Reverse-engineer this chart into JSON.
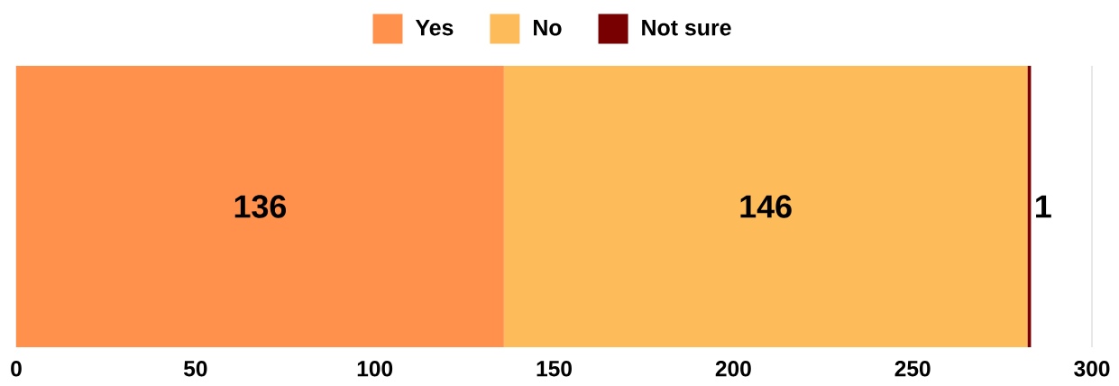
{
  "chart_data": {
    "type": "bar",
    "orientation": "horizontal",
    "stacked": true,
    "categories": [
      null
    ],
    "series": [
      {
        "name": "Yes",
        "color": "#ff914d",
        "values": [
          136
        ]
      },
      {
        "name": "No",
        "color": "#fdbb5a",
        "values": [
          146
        ]
      },
      {
        "name": "Not sure",
        "color": "#780000",
        "values": [
          1
        ]
      }
    ],
    "xlim": [
      0,
      300
    ],
    "xticks": [
      0,
      50,
      100,
      150,
      200,
      250,
      300
    ],
    "grid": "x",
    "legend": "top",
    "tick_labels": "x",
    "data_labels": true
  }
}
